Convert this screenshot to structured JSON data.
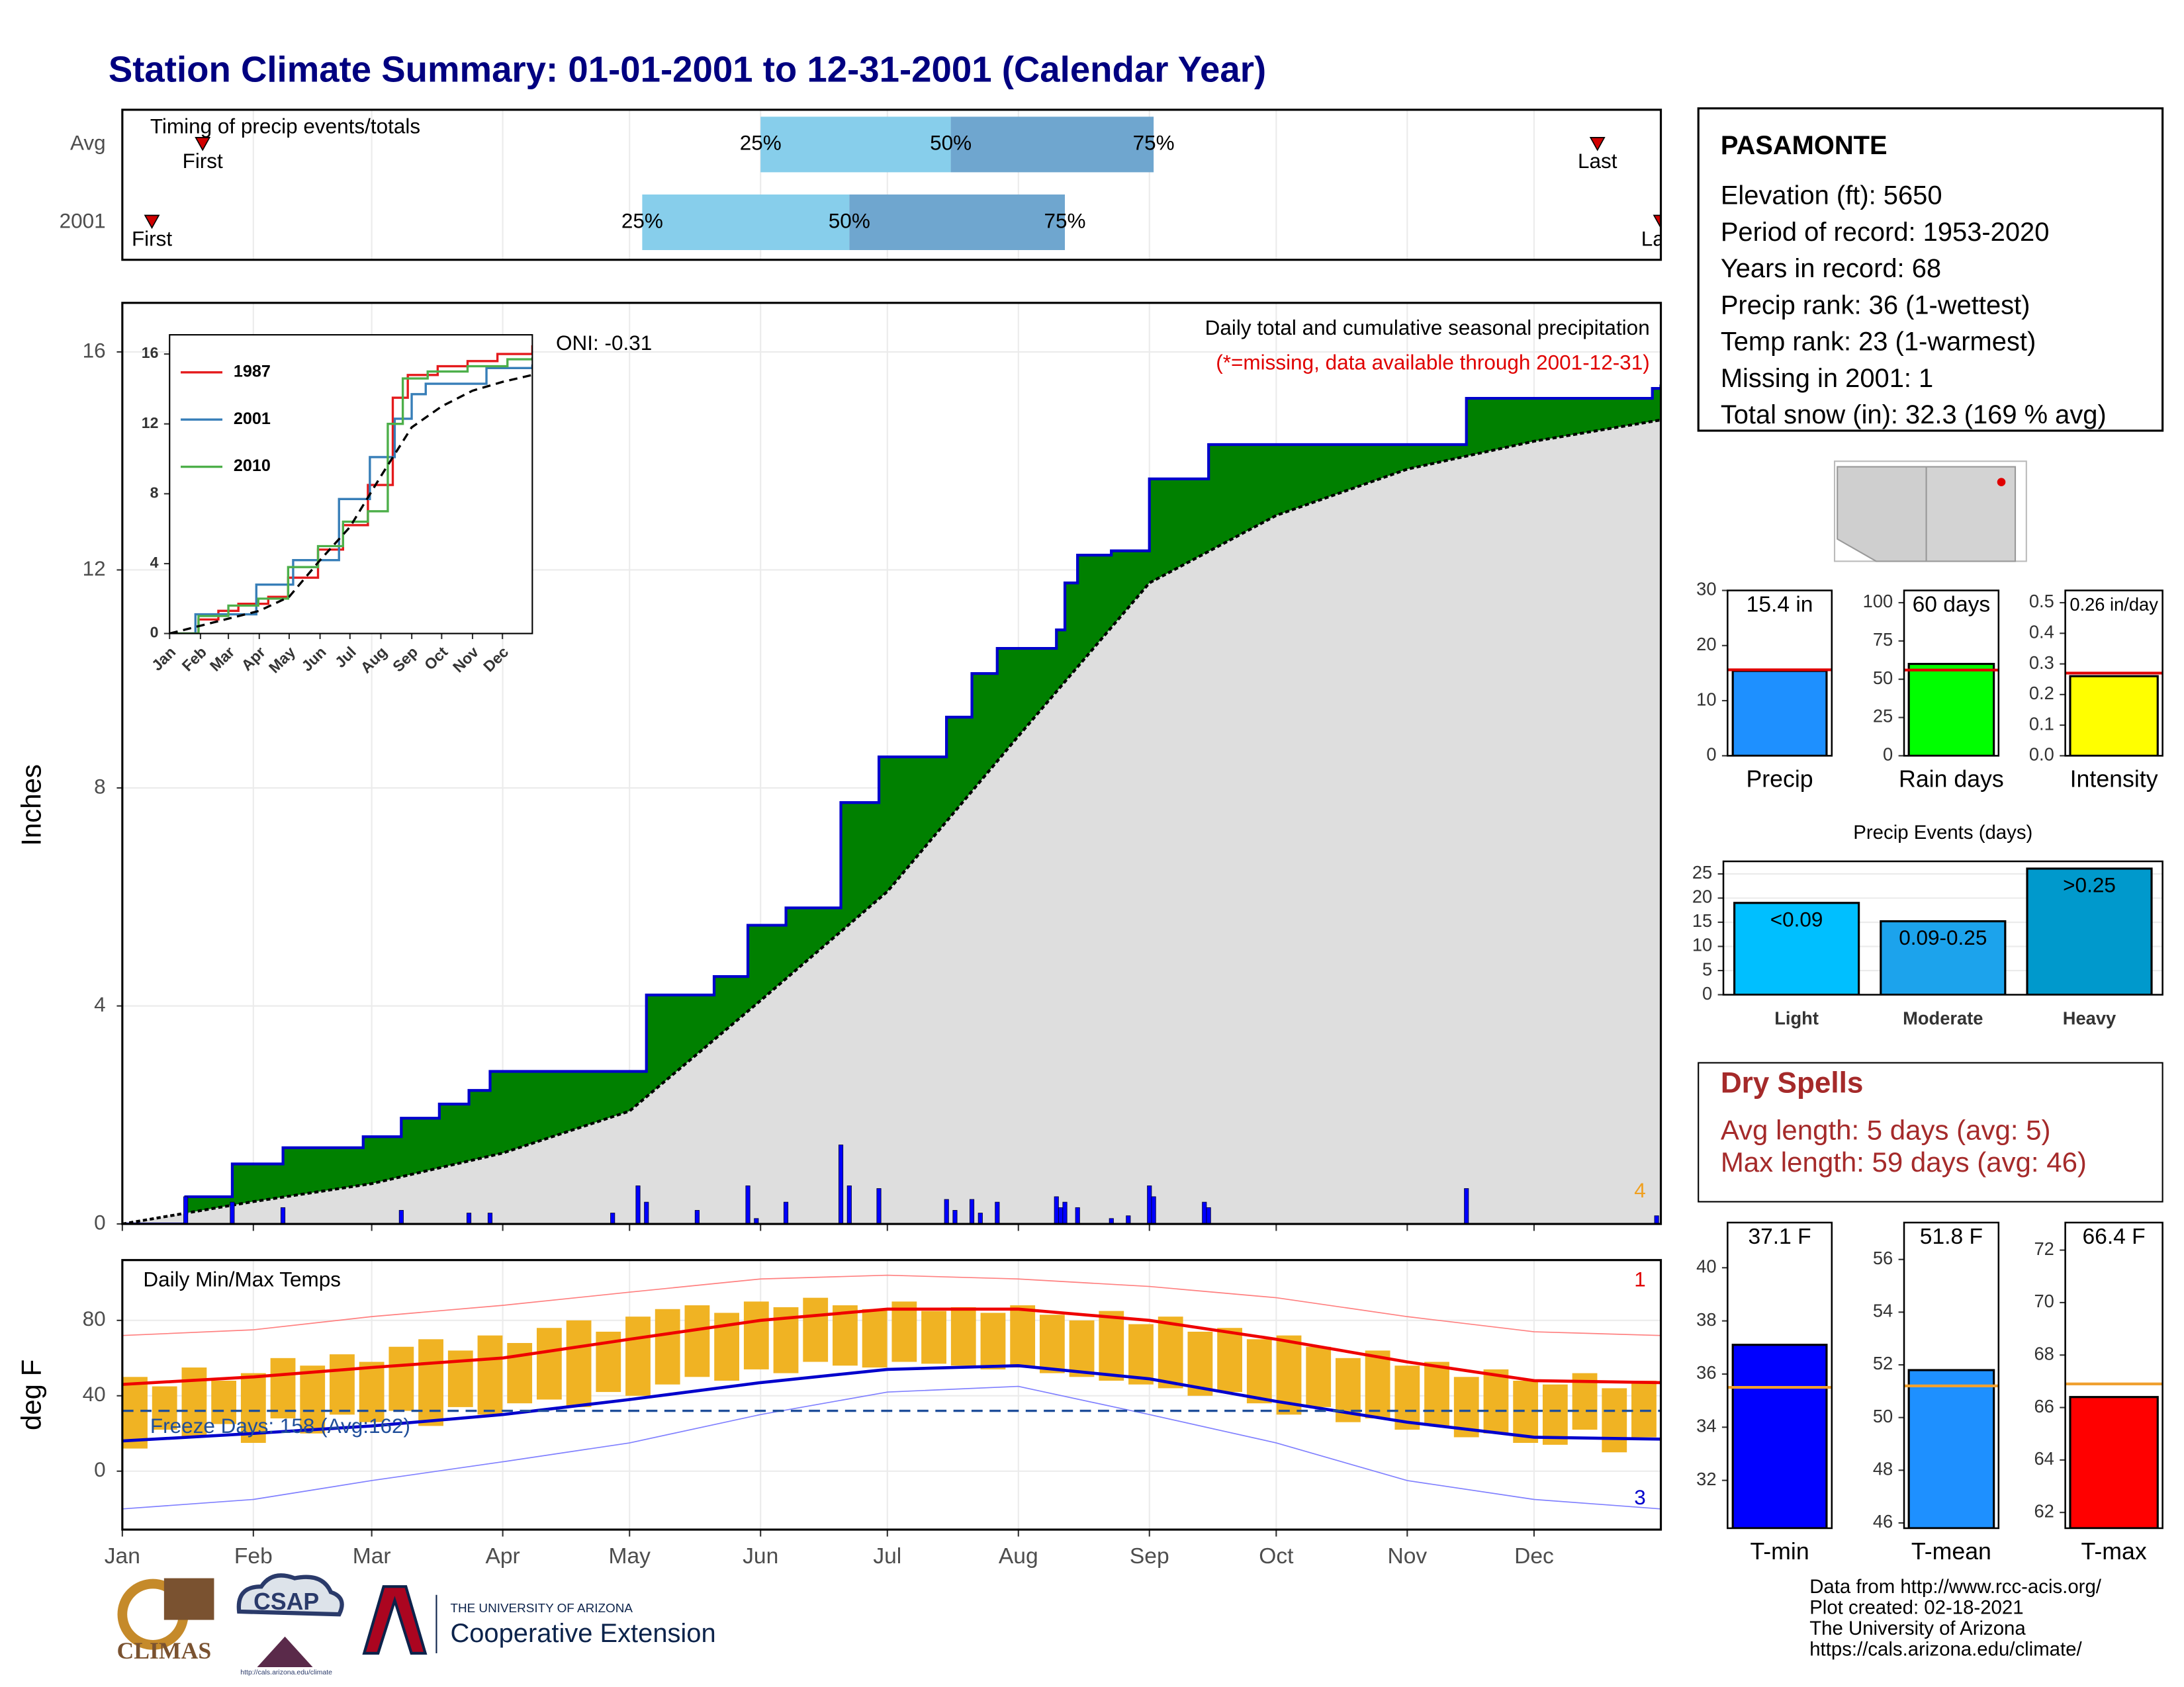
{
  "title": "Station Climate Summary: 01-01-2001 to 12-31-2001 (Calendar Year)",
  "chart_data": [
    {
      "type": "timing",
      "title": "Timing of precip events/totals",
      "categories": [
        "Avg",
        "2001"
      ],
      "series": [
        {
          "name": "First",
          "values": [
            20,
            8
          ]
        },
        {
          "name": "25%",
          "values": [
            152,
            124
          ]
        },
        {
          "name": "50%",
          "values": [
            197,
            173
          ]
        },
        {
          "name": "75%",
          "values": [
            245,
            224
          ]
        },
        {
          "name": "Last",
          "values": [
            350,
            365
          ]
        }
      ],
      "colors": {
        "light": "#87ceeb",
        "dark": "#6fa6cf",
        "marker": "#d00000"
      },
      "xlim": [
        1,
        365
      ],
      "xticks": [
        1,
        32,
        60,
        91,
        121,
        152,
        182,
        213,
        244,
        274,
        305,
        335
      ]
    },
    {
      "type": "step_area",
      "ylabel": "Inches",
      "subtitle": "Daily total and cumulative seasonal precipitation",
      "note": "(*=missing, data available through 2001-12-31)",
      "oni": "ONI: -0.31",
      "count": 4,
      "xlim": [
        1,
        365
      ],
      "xticks": [
        1,
        32,
        60,
        91,
        121,
        152,
        182,
        213,
        244,
        274,
        305,
        335
      ],
      "ylim": [
        0,
        16.9
      ],
      "yticks": [
        0,
        4,
        8,
        12,
        16
      ],
      "cumulative": {
        "color": "#0000cc",
        "fill": "#008000",
        "x": [
          1,
          16,
          27,
          39,
          58,
          67,
          76,
          83,
          88,
          125,
          141,
          149,
          158,
          171,
          180,
          196,
          202,
          208,
          222,
          224,
          227,
          235,
          244,
          258,
          319,
          363,
          365
        ],
        "values": [
          0,
          0.5,
          1.1,
          1.4,
          1.6,
          1.94,
          2.2,
          2.45,
          2.8,
          4.2,
          4.54,
          5.48,
          5.8,
          7.73,
          8.57,
          9.3,
          10.1,
          10.56,
          10.9,
          11.76,
          12.27,
          12.35,
          13.67,
          14.3,
          15.15,
          15.33,
          15.4
        ]
      },
      "average": {
        "color": "#000000",
        "fill": "#dedede",
        "x": [
          1,
          32,
          60,
          91,
          121,
          152,
          182,
          213,
          244,
          274,
          305,
          335,
          365
        ],
        "values": [
          0,
          0.41,
          0.74,
          1.3,
          2.07,
          4.1,
          6.1,
          8.95,
          11.76,
          13.0,
          13.85,
          14.36,
          14.75
        ]
      },
      "daily": {
        "color": "#0000ff",
        "x": [
          16,
          27,
          39,
          67,
          83,
          88,
          117,
          123,
          125,
          137,
          149,
          151,
          158,
          171,
          173,
          180,
          196,
          198,
          202,
          204,
          208,
          222,
          223,
          224,
          227,
          235,
          239,
          244,
          245,
          257,
          258,
          319,
          364
        ],
        "values": [
          0.5,
          0.4,
          0.3,
          0.25,
          0.2,
          0.2,
          0.2,
          0.7,
          0.4,
          0.25,
          0.7,
          0.1,
          0.4,
          1.45,
          0.7,
          0.65,
          0.45,
          0.25,
          0.45,
          0.2,
          0.4,
          0.5,
          0.3,
          0.4,
          0.3,
          0.1,
          0.15,
          0.7,
          0.5,
          0.4,
          0.3,
          0.65,
          0.15
        ]
      }
    },
    {
      "type": "line",
      "xlim": [
        1,
        365
      ],
      "ylim": [
        0,
        17.1
      ],
      "yticks": [
        0,
        4,
        8,
        12,
        16
      ],
      "xticks": [
        {
          "value": 1,
          "label": "Jan"
        },
        {
          "value": 32,
          "label": "Feb"
        },
        {
          "value": 60,
          "label": "Mar"
        },
        {
          "value": 91,
          "label": "Apr"
        },
        {
          "value": 121,
          "label": "May"
        },
        {
          "value": 152,
          "label": "Jun"
        },
        {
          "value": 182,
          "label": "Jul"
        },
        {
          "value": 213,
          "label": "Aug"
        },
        {
          "value": 244,
          "label": "Sep"
        },
        {
          "value": 274,
          "label": "Oct"
        },
        {
          "value": 305,
          "label": "Nov"
        },
        {
          "value": 335,
          "label": "Dec"
        }
      ],
      "series": [
        {
          "name": "1987",
          "color": "#e41a1c",
          "x": [
            1,
            30,
            50,
            70,
            100,
            120,
            150,
            175,
            200,
            225,
            240,
            270,
            300,
            330,
            365
          ],
          "values": [
            0,
            0.8,
            1.3,
            1.7,
            2.1,
            3.2,
            4.8,
            6.2,
            8.5,
            13.5,
            14.8,
            15.3,
            15.6,
            16.0,
            16.5
          ]
        },
        {
          "name": "2001",
          "color": "#377eb8",
          "x": [
            1,
            27,
            88,
            125,
            171,
            202,
            227,
            244,
            258,
            319,
            365
          ],
          "values": [
            0,
            1.1,
            2.8,
            4.2,
            7.7,
            10.1,
            12.3,
            13.7,
            14.3,
            15.2,
            15.4
          ]
        },
        {
          "name": "2010",
          "color": "#4daf4a",
          "x": [
            1,
            30,
            60,
            90,
            120,
            150,
            175,
            200,
            220,
            235,
            260,
            300,
            340,
            365
          ],
          "values": [
            0,
            1.0,
            1.6,
            2.0,
            3.8,
            5.0,
            6.4,
            7.0,
            12.0,
            14.6,
            15.0,
            15.3,
            15.7,
            15.8
          ]
        },
        {
          "color": "#000000",
          "x": [
            1,
            91,
            121,
            152,
            182,
            213,
            244,
            274,
            305,
            335,
            365
          ],
          "values": [
            0,
            1.3,
            2.1,
            4.2,
            6.1,
            9.0,
            11.8,
            13.0,
            13.9,
            14.4,
            14.8
          ]
        }
      ]
    },
    {
      "type": "range_bar",
      "title": "Daily Min/Max Temps",
      "ylabel": "deg F",
      "xlim": [
        1,
        365
      ],
      "ylim": [
        -31,
        112
      ],
      "yticks": [
        0,
        40,
        80
      ],
      "xticks": [
        {
          "value": 1,
          "label": "Jan"
        },
        {
          "value": 32,
          "label": "Feb"
        },
        {
          "value": 60,
          "label": "Mar"
        },
        {
          "value": 91,
          "label": "Apr"
        },
        {
          "value": 121,
          "label": "May"
        },
        {
          "value": 152,
          "label": "Jun"
        },
        {
          "value": 182,
          "label": "Jul"
        },
        {
          "value": 213,
          "label": "Aug"
        },
        {
          "value": 244,
          "label": "Sep"
        },
        {
          "value": 274,
          "label": "Oct"
        },
        {
          "value": 305,
          "label": "Nov"
        },
        {
          "value": 335,
          "label": "Dec"
        }
      ],
      "daily": {
        "color": "#f0b323",
        "x": [
          4,
          11,
          18,
          25,
          32,
          39,
          46,
          53,
          60,
          67,
          74,
          81,
          88,
          95,
          102,
          109,
          116,
          123,
          130,
          137,
          144,
          151,
          158,
          165,
          172,
          179,
          186,
          193,
          200,
          207,
          214,
          221,
          228,
          235,
          242,
          249,
          256,
          263,
          270,
          277,
          284,
          291,
          298,
          305,
          312,
          319,
          326,
          333,
          340,
          347,
          354,
          361
        ],
        "high": [
          50,
          45,
          55,
          48,
          52,
          60,
          56,
          62,
          58,
          66,
          70,
          64,
          72,
          68,
          76,
          80,
          74,
          82,
          86,
          88,
          84,
          90,
          87,
          92,
          88,
          86,
          90,
          85,
          87,
          84,
          88,
          83,
          80,
          85,
          78,
          82,
          74,
          76,
          70,
          72,
          66,
          60,
          64,
          56,
          58,
          50,
          54,
          48,
          46,
          52,
          44,
          48
        ],
        "low": [
          12,
          22,
          18,
          25,
          15,
          28,
          20,
          30,
          26,
          32,
          24,
          34,
          30,
          36,
          38,
          34,
          42,
          40,
          46,
          50,
          48,
          54,
          52,
          58,
          56,
          55,
          58,
          57,
          56,
          54,
          55,
          52,
          50,
          48,
          46,
          44,
          40,
          42,
          36,
          30,
          34,
          26,
          28,
          22,
          24,
          18,
          20,
          15,
          14,
          22,
          10,
          18
        ]
      },
      "averages": [
        {
          "color": "#ee0000",
          "x": [
            1,
            32,
            60,
            91,
            121,
            152,
            182,
            213,
            244,
            274,
            305,
            335,
            365
          ],
          "values": [
            46,
            50,
            55,
            60,
            70,
            80,
            86,
            86,
            80,
            70,
            58,
            48,
            47
          ]
        },
        {
          "color": "#0000cc",
          "x": [
            1,
            32,
            60,
            91,
            121,
            152,
            182,
            213,
            244,
            274,
            305,
            335,
            365
          ],
          "values": [
            16,
            20,
            24,
            30,
            38,
            47,
            54,
            56,
            49,
            37,
            26,
            18,
            17
          ]
        }
      ],
      "records": [
        {
          "color": "#ff8080",
          "x": [
            1,
            32,
            60,
            91,
            121,
            152,
            182,
            213,
            244,
            274,
            305,
            335,
            365
          ],
          "values": [
            72,
            75,
            82,
            88,
            95,
            102,
            104,
            102,
            98,
            92,
            82,
            74,
            72
          ]
        },
        {
          "color": "#8080ff",
          "x": [
            1,
            32,
            60,
            91,
            121,
            152,
            182,
            213,
            244,
            274,
            305,
            335,
            365
          ],
          "values": [
            -20,
            -15,
            -5,
            5,
            15,
            30,
            42,
            45,
            30,
            15,
            -5,
            -15,
            -20
          ]
        }
      ],
      "freeze": 32,
      "freeze_color": "#1f4e9a",
      "freeze_label": "Freeze Days: 158 (Avg:162)",
      "record_high_days": 1,
      "record_low_days": 3
    },
    {
      "type": "bar",
      "categories": [
        "Precip"
      ],
      "values": [
        15.4
      ],
      "value_labels": [
        "15.4 in"
      ],
      "color": "#1e90ff",
      "average": 15.6,
      "average_color": "#e00000",
      "ylim": [
        0,
        30
      ],
      "yticks": [
        0,
        10,
        20,
        30
      ]
    },
    {
      "type": "bar",
      "categories": [
        "Rain days"
      ],
      "values": [
        60
      ],
      "value_labels": [
        "60 days"
      ],
      "color": "#00ff00",
      "average": 56,
      "average_color": "#e00000",
      "ylim": [
        0,
        108
      ],
      "yticks": [
        0,
        25,
        50,
        75,
        100
      ]
    },
    {
      "type": "bar",
      "categories": [
        "Intensity"
      ],
      "values": [
        0.26
      ],
      "value_labels": [
        "0.26 in/day"
      ],
      "color": "#ffff00",
      "average": 0.27,
      "average_color": "#e00000",
      "ylim": [
        0,
        0.54
      ],
      "yticks": [
        {
          "value": 0,
          "label": "0.0"
        },
        0.1,
        0.2,
        0.3,
        0.4,
        0.5
      ]
    },
    {
      "type": "bar",
      "title": "Precip Events (days)",
      "categories": [
        "Light",
        "Moderate",
        "Heavy"
      ],
      "values": [
        19,
        15.2,
        26.1
      ],
      "value_labels": [
        "<0.09",
        "0.09-0.25",
        ">0.25"
      ],
      "colors": [
        "#00bfff",
        "#1ca3ec",
        "#0099cc"
      ],
      "ylim": [
        0,
        27.6
      ],
      "yticks": [
        0,
        5,
        10,
        15,
        20,
        25
      ],
      "grid": true
    },
    {
      "type": "bar",
      "categories": [
        "T-min"
      ],
      "values": [
        37.1
      ],
      "value_labels": [
        "37.1 F"
      ],
      "color": "#0000ff",
      "average": 35.5,
      "average_color": "#f0a030",
      "ylim": [
        30.2,
        41.7
      ],
      "yticks": [
        32,
        34,
        36,
        38,
        40
      ]
    },
    {
      "type": "bar",
      "categories": [
        "T-mean"
      ],
      "values": [
        51.8
      ],
      "value_labels": [
        "51.8 F"
      ],
      "color": "#1e90ff",
      "average": 51.2,
      "average_color": "#f0a030",
      "ylim": [
        45.8,
        57.4
      ],
      "yticks": [
        46,
        48,
        50,
        52,
        54,
        56
      ]
    },
    {
      "type": "bar",
      "categories": [
        "T-max"
      ],
      "values": [
        66.4
      ],
      "value_labels": [
        "66.4 F"
      ],
      "color": "#ff0000",
      "average": 66.9,
      "average_color": "#f0a030",
      "ylim": [
        61.4,
        73.05
      ],
      "yticks": [
        62,
        64,
        66,
        68,
        70,
        72
      ]
    }
  ],
  "station": {
    "name": "PASAMONTE",
    "lines": [
      "Elevation (ft): 5650",
      "Period of record: 1953-2020",
      "Years in record: 68",
      "Precip rank: 36 (1-wettest)",
      "Temp rank: 23 (1-warmest)",
      "Missing in 2001: 1",
      "Total snow (in): 32.3 (169 % avg)"
    ]
  },
  "dry_spells": {
    "title": "Dry Spells",
    "lines": [
      "Avg length: 5 days (avg: 5)",
      "Max length: 59 days (avg: 46)"
    ]
  },
  "footer": [
    "Data from http://www.rcc-acis.org/",
    "Plot created: 02-18-2021",
    "The University of Arizona",
    "https://cals.arizona.edu/climate/"
  ],
  "logos": {
    "climas": "CLIMAS",
    "csap": "CSAP",
    "csap_url": "http://cals.arizona.edu/climate",
    "university": "THE UNIVERSITY OF ARIZONA",
    "extension": "Cooperative Extension"
  }
}
